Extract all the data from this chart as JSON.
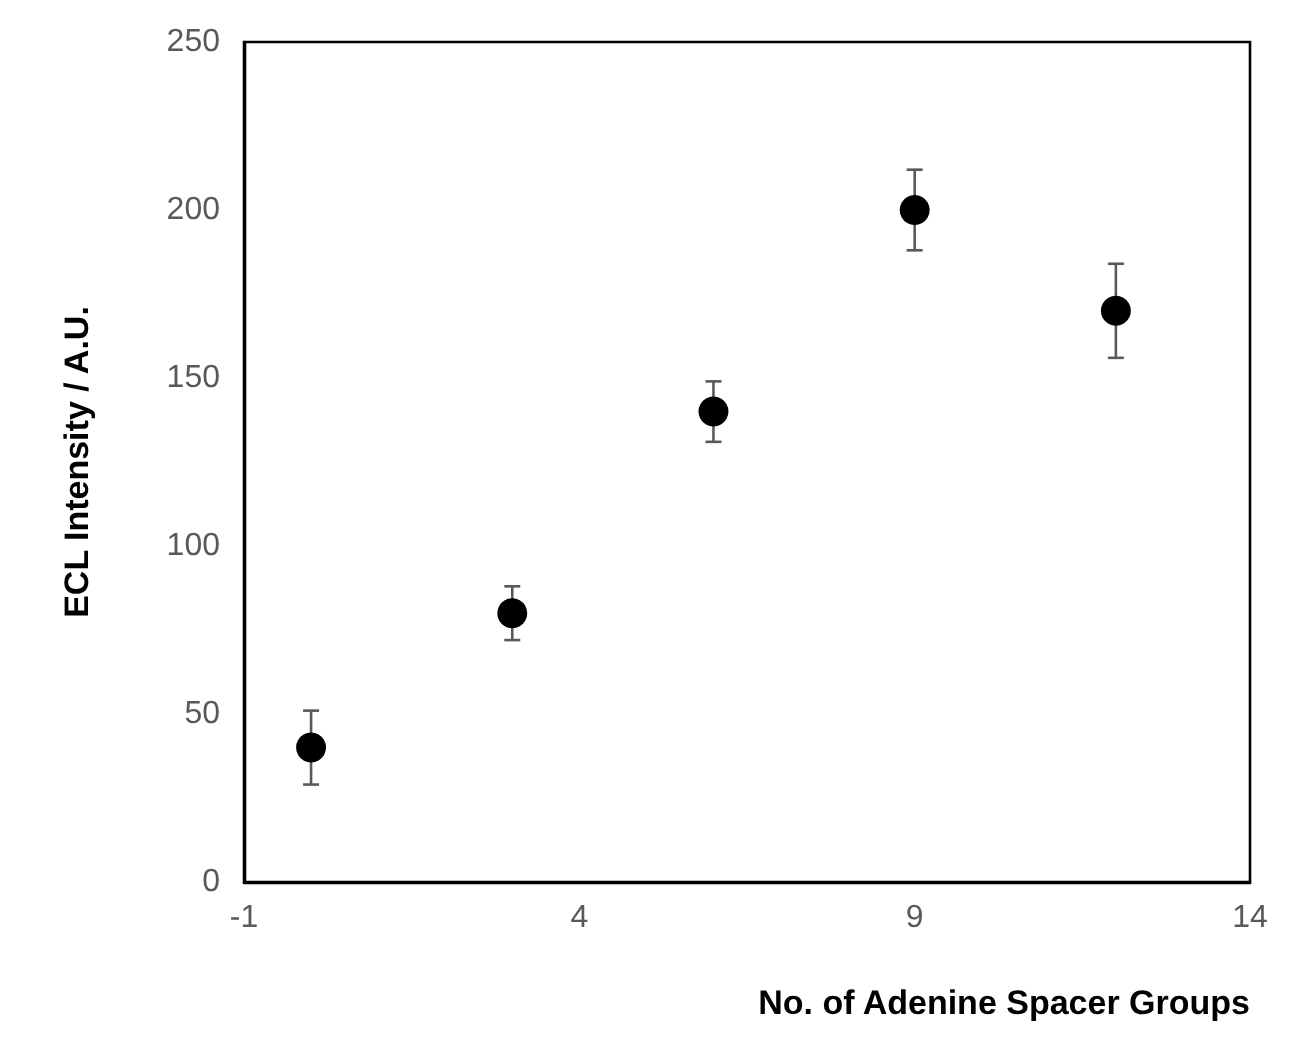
{
  "chart_data": {
    "type": "scatter",
    "xlabel": "No. of Adenine Spacer Groups",
    "ylabel": "ECL Intensity / A.U.",
    "x": [
      0,
      3,
      6,
      9,
      12
    ],
    "series": [
      {
        "color": "#000000",
        "values": [
          40,
          80,
          140,
          200,
          170
        ],
        "errors": [
          11,
          8,
          9,
          12,
          14
        ]
      }
    ],
    "xlim": [
      -1,
      14
    ],
    "xticks": [
      -1,
      4,
      9,
      14
    ],
    "ylim": [
      0,
      250
    ],
    "yticks": [
      0,
      50,
      100,
      150,
      200,
      250
    ],
    "marker": "circle",
    "grid": false
  }
}
